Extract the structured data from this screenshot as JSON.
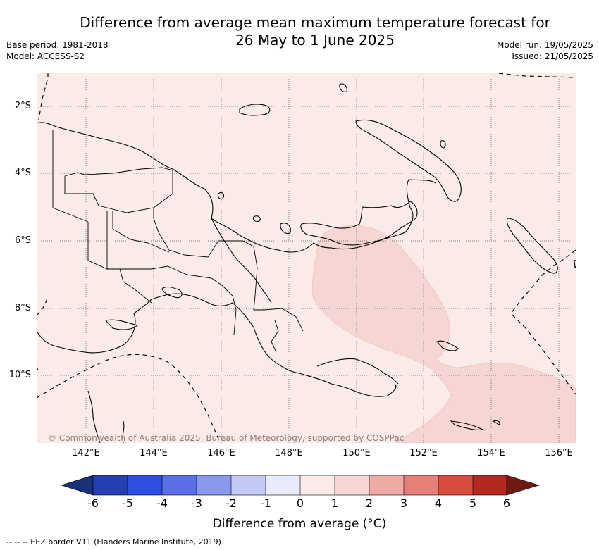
{
  "title_line1": "Difference from average mean maximum temperature forecast for",
  "title_line2": "26 May to 1 June 2025",
  "base_period": "Base period: 1981-2018",
  "model": "Model: ACCESS-S2",
  "model_run": "Model run: 19/05/2025",
  "issued": "Issued: 21/05/2025",
  "copyright": "© Commonwealth of Australia 2025, Bureau of Meteorology, supported by COSPPac",
  "lat_labels": [
    "2°S",
    "4°S",
    "6°S",
    "8°S",
    "10°S"
  ],
  "lon_labels": [
    "142°E",
    "144°E",
    "146°E",
    "148°E",
    "150°E",
    "152°E",
    "154°E",
    "156°E"
  ],
  "colorbar": {
    "title": "Difference from average (°C)",
    "ticks": [
      "-6",
      "-5",
      "-4",
      "-3",
      "-2",
      "-1",
      "0",
      "1",
      "2",
      "3",
      "4",
      "5",
      "6"
    ],
    "colors": {
      "below_-6": "#1b2f7a",
      "-6_-5": "#233fb0",
      "-5_-4": "#2e4fe0",
      "-4_-3": "#5a6fe6",
      "-3_-2": "#8a98ec",
      "-2_-1": "#c3c9f5",
      "-1_0": "#e8ebfa",
      "0_1": "#fbebe8",
      "1_2": "#f5d6d2",
      "2_3": "#eeaaa5",
      "3_4": "#e58079",
      "4_5": "#d94a3f",
      "5_6": "#b02a22",
      "above_6": "#6e1a14"
    }
  },
  "footer": "--  --  -- EEZ border V11 (Flanders Marine Institute, 2019)."
}
